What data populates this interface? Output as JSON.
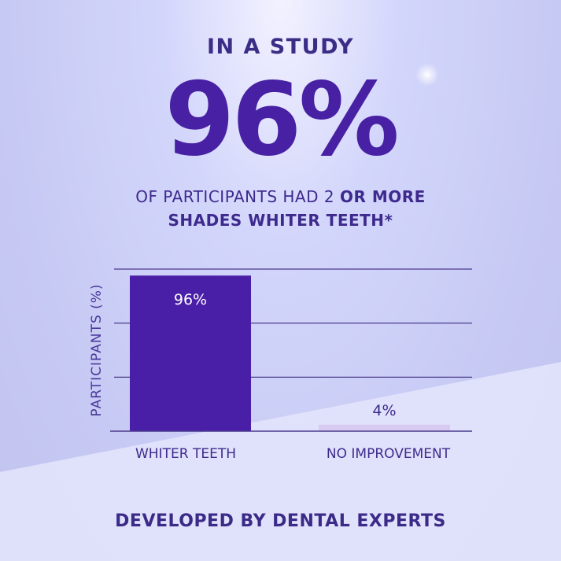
{
  "header": {
    "kicker": "IN A STUDY",
    "headline": "96%",
    "subtitle_line1_regular": "OF PARTICIPANTS HAD 2",
    "subtitle_line1_bold": "OR MORE",
    "subtitle_line2": "SHADES WHITER TEETH*"
  },
  "footer": "DEVELOPED BY DENTAL EXPERTS",
  "colors": {
    "primary_bar": "#4a1fa8",
    "secondary_bar": "#d8cbf2",
    "text": "#3e2a8e",
    "grid": "#4b3a8c"
  },
  "chart_data": {
    "type": "bar",
    "categories": [
      "WHITER TEETH",
      "NO IMPROVEMENT"
    ],
    "values": [
      96,
      4
    ],
    "data_labels": [
      "96%",
      "4%"
    ],
    "ylabel": "PARTICIPANTS (%)",
    "xlabel": "",
    "ylim": [
      0,
      100
    ],
    "grid": true,
    "yticks_shown": false
  }
}
